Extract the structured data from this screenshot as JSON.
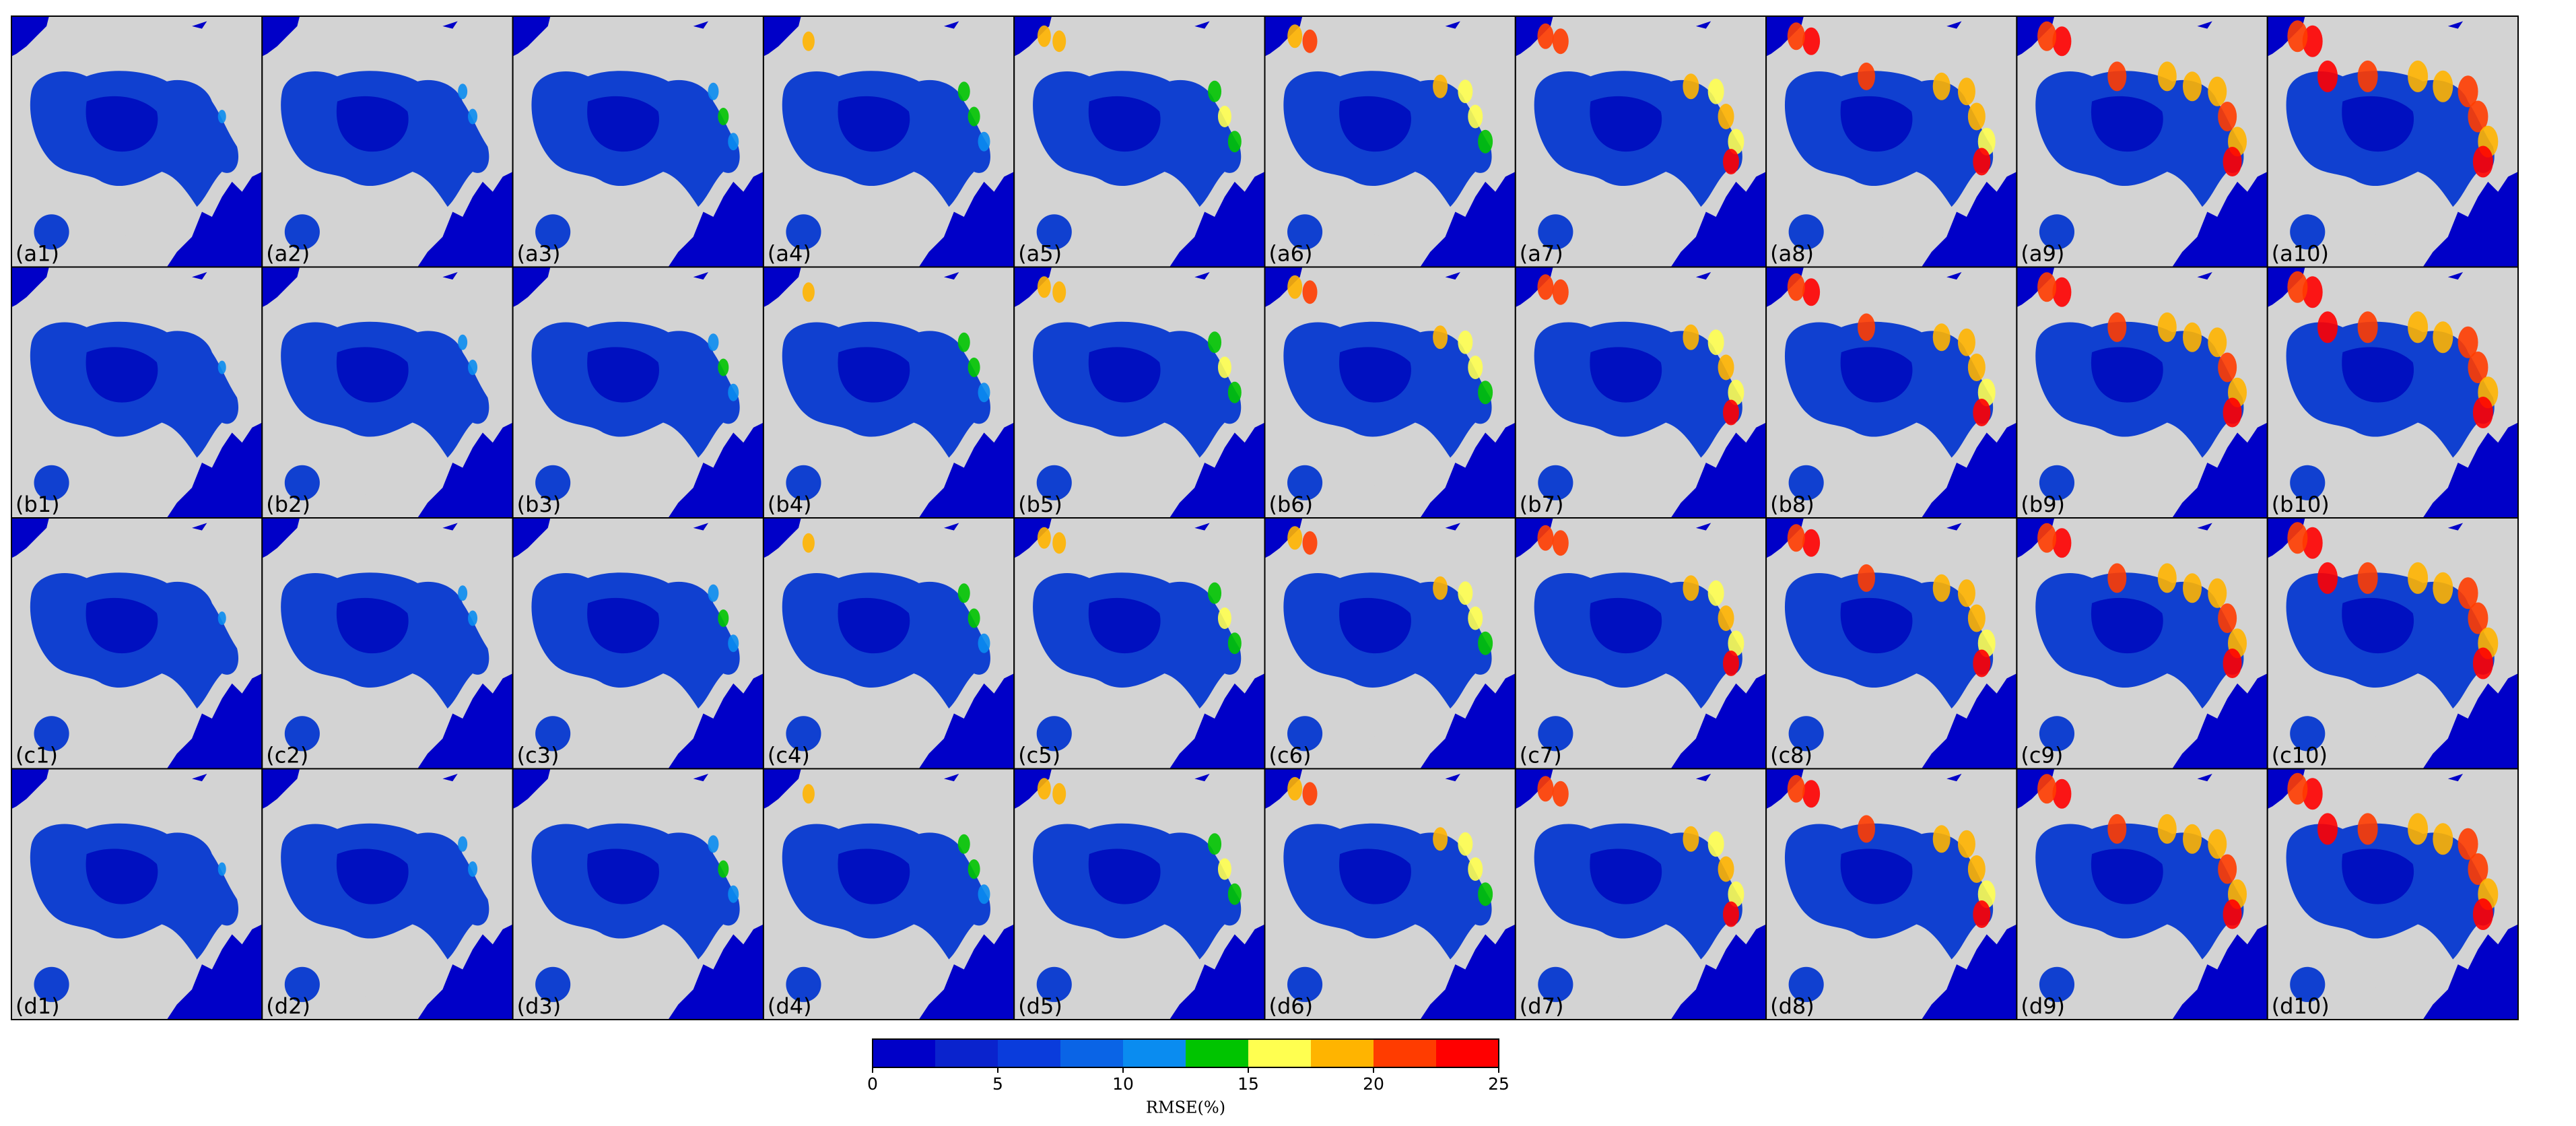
{
  "chart_data": {
    "type": "map",
    "panels": [
      [
        "(a1)",
        "(a2)",
        "(a3)",
        "(a4)",
        "(a5)",
        "(a6)",
        "(a7)",
        "(a8)",
        "(a9)",
        "(a10)"
      ],
      [
        "(b1)",
        "(b2)",
        "(b3)",
        "(b4)",
        "(b5)",
        "(b6)",
        "(b7)",
        "(b8)",
        "(b9)",
        "(b10)"
      ],
      [
        "(c1)",
        "(c2)",
        "(c3)",
        "(c4)",
        "(c5)",
        "(c6)",
        "(c7)",
        "(c8)",
        "(c9)",
        "(c10)"
      ],
      [
        "(d1)",
        "(d2)",
        "(d3)",
        "(d4)",
        "(d5)",
        "(d6)",
        "(d7)",
        "(d8)",
        "(d9)",
        "(d10)"
      ]
    ],
    "colorbar": {
      "label": "RMSE(%)",
      "xlim": [
        0,
        25
      ],
      "xticks": [
        0,
        5,
        10,
        15,
        20,
        25
      ],
      "levels": [
        0,
        2.5,
        5,
        7.5,
        10,
        12.5,
        15,
        17.5,
        20,
        22.5,
        25
      ],
      "colors": [
        "#0000c8",
        "#0a23cd",
        "#0a3cdc",
        "#0a64e6",
        "#0a8cf0",
        "#00c400",
        "#ffff50",
        "#ffb400",
        "#ff3c00",
        "#ff0000"
      ]
    }
  }
}
